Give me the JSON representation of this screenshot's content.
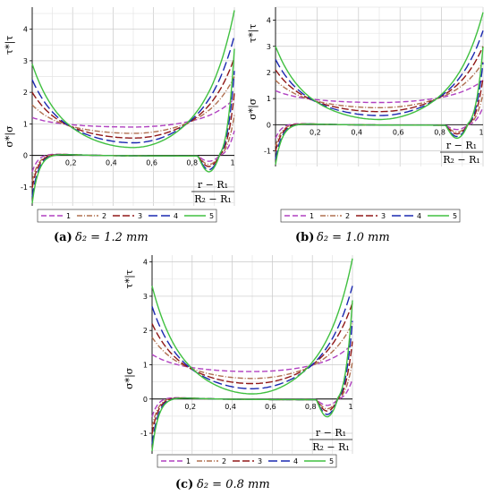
{
  "chart_data": [
    {
      "type": "line",
      "caption_letter": "(a)",
      "caption_text": "δ₂ = 1.2  mm",
      "x_axis_label_num": "r − R₁",
      "x_axis_label_den": "R₂ − R₁",
      "ylabel_top": "τ*|τ",
      "ylabel_bottom": "σ*|σ",
      "xlim": [
        0,
        1
      ],
      "ylim": [
        -1.6,
        4.7
      ],
      "x_ticks": [
        "0,2",
        "0,4",
        "0,6",
        "0,8",
        "1"
      ],
      "y_ticks": [
        "-1",
        "0",
        "1",
        "2",
        "3",
        "4"
      ],
      "legend": [
        "1",
        "2",
        "3",
        "4",
        "5"
      ],
      "tau_series": [
        {
          "name": "1",
          "left": 1.2,
          "mid": 0.9,
          "right": 1.8
        },
        {
          "name": "2",
          "left": 1.6,
          "mid": 0.7,
          "right": 2.5
        },
        {
          "name": "3",
          "left": 2.0,
          "mid": 0.55,
          "right": 3.1
        },
        {
          "name": "4",
          "left": 2.4,
          "mid": 0.4,
          "right": 3.8
        },
        {
          "name": "5",
          "left": 2.9,
          "mid": 0.25,
          "right": 4.6
        }
      ],
      "sigma_series": [
        {
          "name": "1",
          "left": -0.5,
          "right": 0.8
        },
        {
          "name": "2",
          "left": -0.8,
          "right": 1.3
        },
        {
          "name": "3",
          "left": -1.0,
          "right": 2.0
        },
        {
          "name": "4",
          "left": -1.3,
          "right": 2.7
        },
        {
          "name": "5",
          "left": -1.5,
          "right": 3.4
        }
      ]
    },
    {
      "type": "line",
      "caption_letter": "(b)",
      "caption_text": "δ₂ = 1.0  mm",
      "x_axis_label_num": "r − R₁",
      "x_axis_label_den": "R₂ − R₁",
      "ylabel_top": "τ*|τ",
      "ylabel_bottom": "σ*|σ",
      "xlim": [
        0,
        1
      ],
      "ylim": [
        -1.6,
        4.5
      ],
      "x_ticks": [
        "0,2",
        "0,4",
        "0,6",
        "0,8",
        "1"
      ],
      "y_ticks": [
        "-1",
        "0",
        "1",
        "2",
        "3",
        "4"
      ],
      "legend": [
        "1",
        "2",
        "3",
        "4",
        "5"
      ],
      "tau_series": [
        {
          "name": "1",
          "left": 1.3,
          "mid": 0.85,
          "right": 1.7
        },
        {
          "name": "2",
          "left": 1.7,
          "mid": 0.65,
          "right": 2.4
        },
        {
          "name": "3",
          "left": 2.1,
          "mid": 0.5,
          "right": 3.0
        },
        {
          "name": "4",
          "left": 2.5,
          "mid": 0.35,
          "right": 3.6
        },
        {
          "name": "5",
          "left": 3.0,
          "mid": 0.2,
          "right": 4.3
        }
      ],
      "sigma_series": [
        {
          "name": "1",
          "left": -0.5,
          "right": 0.7
        },
        {
          "name": "2",
          "left": -0.8,
          "right": 1.2
        },
        {
          "name": "3",
          "left": -1.0,
          "right": 1.8
        },
        {
          "name": "4",
          "left": -1.3,
          "right": 2.4
        },
        {
          "name": "5",
          "left": -1.5,
          "right": 3.0
        }
      ]
    },
    {
      "type": "line",
      "caption_letter": "(c)",
      "caption_text": "δ₂ = 0.8  mm",
      "x_axis_label_num": "r − R₁",
      "x_axis_label_den": "R₂ − R₁",
      "ylabel_top": "τ*|τ",
      "ylabel_bottom": "σ*|σ",
      "xlim": [
        0,
        1
      ],
      "ylim": [
        -1.6,
        4.2
      ],
      "x_ticks": [
        "0,2",
        "0,4",
        "0,6",
        "0,8",
        "1"
      ],
      "y_ticks": [
        "-1",
        "0",
        "1",
        "2",
        "3",
        "4"
      ],
      "legend": [
        "1",
        "2",
        "3",
        "4",
        "5"
      ],
      "tau_series": [
        {
          "name": "1",
          "left": 1.3,
          "mid": 0.8,
          "right": 1.6
        },
        {
          "name": "2",
          "left": 1.8,
          "mid": 0.6,
          "right": 2.2
        },
        {
          "name": "3",
          "left": 2.2,
          "mid": 0.45,
          "right": 2.8
        },
        {
          "name": "4",
          "left": 2.7,
          "mid": 0.3,
          "right": 3.3
        },
        {
          "name": "5",
          "left": 3.3,
          "mid": 0.15,
          "right": 4.1
        }
      ],
      "sigma_series": [
        {
          "name": "1",
          "left": -0.5,
          "right": 0.6
        },
        {
          "name": "2",
          "left": -0.8,
          "right": 1.1
        },
        {
          "name": "3",
          "left": -1.0,
          "right": 1.7
        },
        {
          "name": "4",
          "left": -1.3,
          "right": 2.3
        },
        {
          "name": "5",
          "left": -1.5,
          "right": 2.9
        }
      ]
    }
  ],
  "series_styles": [
    {
      "name": "1",
      "color": "#b040c0",
      "dash": "6,3"
    },
    {
      "name": "2",
      "color": "#b07050",
      "dash": "6,2,1,2"
    },
    {
      "name": "3",
      "color": "#901818",
      "dash": "8,3"
    },
    {
      "name": "4",
      "color": "#1a28b0",
      "dash": "10,4"
    },
    {
      "name": "5",
      "color": "#40c040",
      "dash": ""
    }
  ]
}
